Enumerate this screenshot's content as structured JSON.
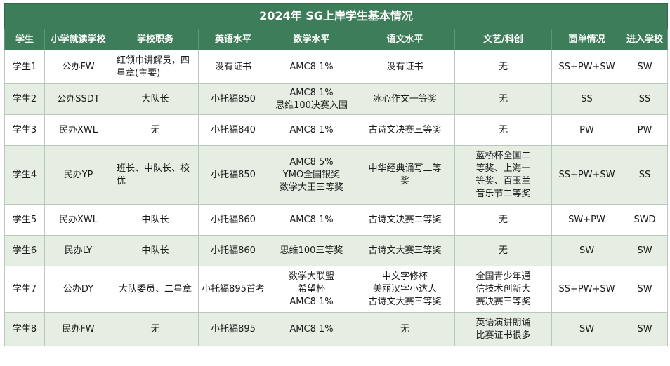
{
  "title": "2024年 SG上岸学生基本情况",
  "headers": [
    "学生",
    "小学就读学校",
    "学校职务",
    "英语水平",
    "数学水平",
    "语文水平",
    "文艺/科创",
    "面单情况",
    "进入学校"
  ],
  "rows": [
    {
      "student": "学生1",
      "school": "公办FW",
      "role": [
        "红领巾讲解员，四",
        "星章(主要)"
      ],
      "english": "没有证书",
      "math": [
        "AMC8  1%"
      ],
      "chinese": [
        "没有证书"
      ],
      "arts": [
        "无"
      ],
      "offers": "SS+PW+SW",
      "admitted": "SW"
    },
    {
      "student": "学生2",
      "school": "公办SSDT",
      "role": [
        "大队长"
      ],
      "english": "小托福850",
      "math": [
        "AMC8  1%",
        "思维100决赛入围"
      ],
      "chinese": [
        "冰心作文一等奖"
      ],
      "arts": [
        "无"
      ],
      "offers": "SS",
      "admitted": "SS"
    },
    {
      "student": "学生3",
      "school": "民办XWL",
      "role": [
        "无"
      ],
      "english": "小托福840",
      "math": [
        "AMC8  1%"
      ],
      "chinese": [
        "古诗文决赛三等奖"
      ],
      "arts": [
        "无"
      ],
      "offers": "PW",
      "admitted": "PW"
    },
    {
      "student": "学生4",
      "school": "民办YP",
      "role": [
        "班长、中队长、校",
        "优"
      ],
      "english": "小托福850",
      "math": [
        "AMC8  5%",
        "YMO全国银奖",
        "数学大王三等奖"
      ],
      "chinese": [
        "中华经典诵写二等",
        "奖"
      ],
      "arts": [
        "蓝桥杯全国二",
        "等奖、上海一",
        "等奖、百玉兰",
        "音乐节二等奖"
      ],
      "offers": "SS+PW+SW",
      "admitted": "SS"
    },
    {
      "student": "学生5",
      "school": "民办XWL",
      "role": [
        "中队长"
      ],
      "english": "小托福860",
      "math": [
        "AMC8  1%"
      ],
      "chinese": [
        "古诗文决赛二等奖"
      ],
      "arts": [
        "无"
      ],
      "offers": "SW+PW",
      "admitted": "SWD"
    },
    {
      "student": "学生6",
      "school": "民办LY",
      "role": [
        "中队长"
      ],
      "english": "小托福860",
      "math": [
        "思维100三等奖"
      ],
      "chinese": [
        "古诗文大赛三等奖"
      ],
      "arts": [
        "无"
      ],
      "offers": "SW",
      "admitted": "SW"
    },
    {
      "student": "学生7",
      "school": "公办DY",
      "role": [
        "大队委员、二星章"
      ],
      "english": "小托福895首考",
      "math": [
        "数学大联盟",
        "希望杯",
        "AMC8  1%"
      ],
      "chinese": [
        "中文字修杯",
        "美丽汉字小达人",
        "古诗文大赛三等奖"
      ],
      "arts": [
        "全国青少年通",
        "信技术创新大",
        "赛决赛三等奖"
      ],
      "offers": "SS+PW+SW",
      "admitted": "SW"
    },
    {
      "student": "学生8",
      "school": "民办FW",
      "role": [
        "无"
      ],
      "english": "小托福895",
      "math": [
        "AMC8  1%"
      ],
      "chinese": [
        "无"
      ],
      "arts": [
        "英语演讲朗诵",
        "比赛证书很多"
      ],
      "offers": "SW",
      "admitted": "SW"
    }
  ]
}
